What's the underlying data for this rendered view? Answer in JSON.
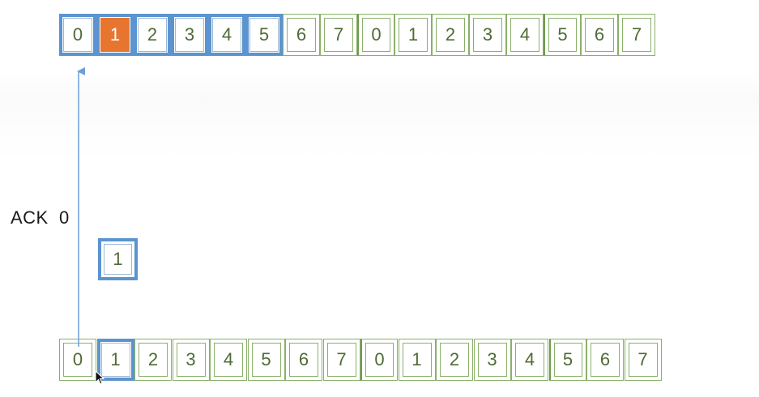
{
  "sender_row": {
    "cells": [
      "0",
      "1",
      "2",
      "3",
      "4",
      "5",
      "6",
      "7",
      "0",
      "1",
      "2",
      "3",
      "4",
      "5",
      "6",
      "7"
    ],
    "window_size": 6,
    "lost_index": 1
  },
  "receiver_row": {
    "cells": [
      "0",
      "1",
      "2",
      "3",
      "4",
      "5",
      "6",
      "7",
      "0",
      "1",
      "2",
      "3",
      "4",
      "5",
      "6",
      "7"
    ],
    "window_index": 1
  },
  "inflight_packet": {
    "label": "1"
  },
  "ack": {
    "label": "ACK  0"
  },
  "colors": {
    "window_blue": "#5b94cf",
    "cell_green": "#8ab06a",
    "text_green": "#4f6b35",
    "lost_orange": "#e8752f",
    "arrow_blue": "#6a9fd8"
  }
}
